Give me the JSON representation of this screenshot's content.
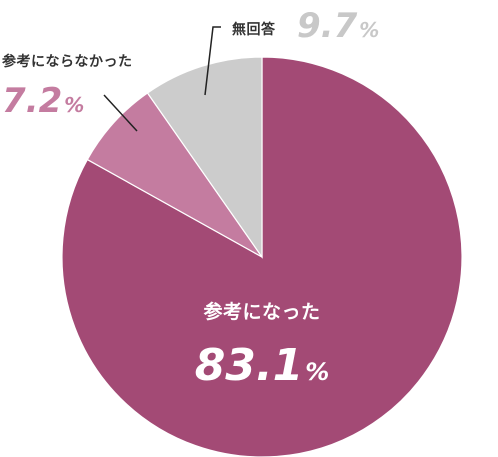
{
  "chart_data": {
    "type": "pie",
    "start_angle_deg": 0,
    "direction": "clockwise",
    "values_unit": "%",
    "slices": [
      {
        "label": "参考になった",
        "value": 83.1,
        "color": "#a34a75",
        "label_color": "#ffffff",
        "value_color": "#ffffff"
      },
      {
        "label": "参考にならなかった",
        "value": 7.2,
        "color": "#c47ca0",
        "label_color": "#333333",
        "value_color": "#c47ca0"
      },
      {
        "label": "無回答",
        "value": 9.7,
        "color": "#cccccc",
        "label_color": "#333333",
        "value_color": "#c8c8c8"
      }
    ],
    "legend": "none",
    "slice_border_color": "#ffffff"
  }
}
